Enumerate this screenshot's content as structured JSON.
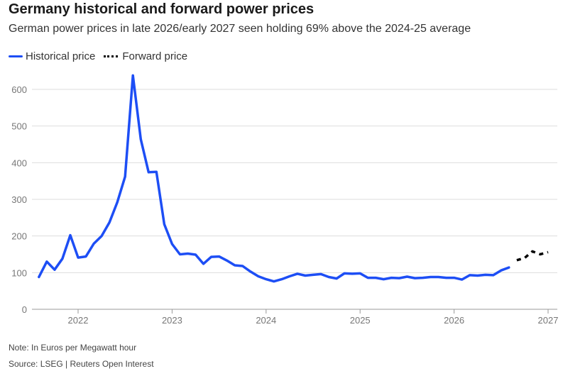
{
  "header": {
    "title": "Germany historical and forward power prices",
    "subtitle": "German power prices in late 2026/early 2027 seen holding 69% above the 2024-25 average"
  },
  "legend": {
    "historical": "Historical price",
    "forward": "Forward price"
  },
  "footer": {
    "note": "Note: In Euros per Megawatt hour",
    "source": "Source: LSEG | Reuters Open Interest"
  },
  "colors": {
    "historical": "#1d4ef5",
    "forward": "#000000",
    "grid": "#dddddd",
    "axis": "#999999"
  },
  "chart_data": {
    "type": "line",
    "title": "Germany historical and forward power prices",
    "subtitle": "German power prices in late 2026/early 2027 seen holding 69% above the 2024-25 average",
    "xlabel": "",
    "ylabel": "",
    "unit_note": "Note: In Euros per Megawatt hour",
    "ylim": [
      0,
      650
    ],
    "yticks": [
      0,
      100,
      200,
      300,
      400,
      500,
      600
    ],
    "xlim": [
      "2021-07",
      "2027-01"
    ],
    "xticks": [
      "2022",
      "2023",
      "2024",
      "2025",
      "2026",
      "2027"
    ],
    "grid": true,
    "legend_position": "top-left",
    "series": [
      {
        "name": "Historical price",
        "style": "solid",
        "x": [
          "2021-08",
          "2021-09",
          "2021-10",
          "2021-11",
          "2021-12",
          "2022-01",
          "2022-02",
          "2022-03",
          "2022-04",
          "2022-05",
          "2022-06",
          "2022-07",
          "2022-08",
          "2022-09",
          "2022-10",
          "2022-11",
          "2022-12",
          "2023-01",
          "2023-02",
          "2023-03",
          "2023-04",
          "2023-05",
          "2023-06",
          "2023-07",
          "2023-08",
          "2023-09",
          "2023-10",
          "2023-11",
          "2023-12",
          "2024-01",
          "2024-02",
          "2024-03",
          "2024-04",
          "2024-05",
          "2024-06",
          "2024-07",
          "2024-08",
          "2024-09",
          "2024-10",
          "2024-11",
          "2024-12",
          "2025-01",
          "2025-02",
          "2025-03",
          "2025-04",
          "2025-05",
          "2025-06",
          "2025-07",
          "2025-08",
          "2025-09",
          "2025-10",
          "2025-11",
          "2025-12",
          "2026-01",
          "2026-02",
          "2026-03",
          "2026-04",
          "2026-05",
          "2026-06",
          "2026-07",
          "2026-08"
        ],
        "values": [
          88,
          130,
          108,
          138,
          202,
          141,
          144,
          179,
          200,
          237,
          292,
          362,
          638,
          464,
          374,
          375,
          232,
          178,
          150,
          152,
          149,
          124,
          143,
          144,
          133,
          120,
          118,
          103,
          90,
          82,
          76,
          82,
          90,
          97,
          92,
          94,
          96,
          88,
          84,
          98,
          97,
          98,
          86,
          86,
          82,
          86,
          85,
          89,
          85,
          86,
          88,
          88,
          86,
          86,
          81,
          93,
          92,
          94,
          93,
          106,
          114
        ]
      },
      {
        "name": "Forward price",
        "style": "dashed",
        "x": [
          "2026-09",
          "2026-10",
          "2026-11",
          "2026-12",
          "2027-01"
        ],
        "values": [
          134,
          140,
          158,
          150,
          156
        ]
      }
    ]
  }
}
